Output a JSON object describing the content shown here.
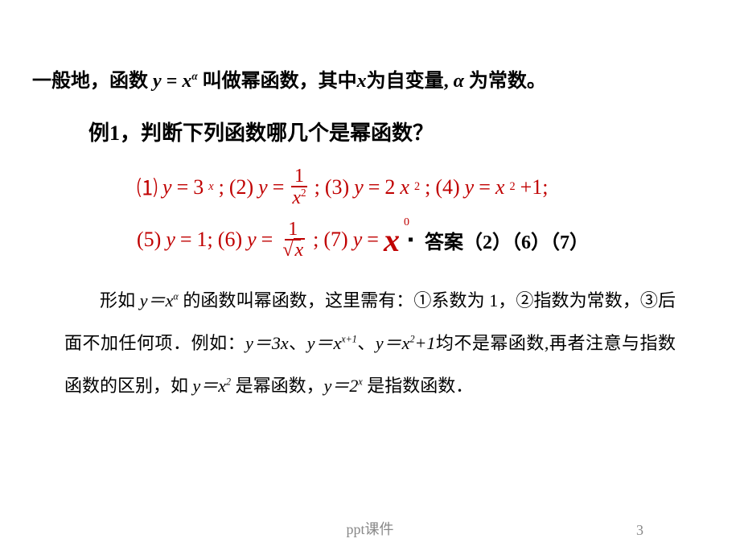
{
  "colors": {
    "text": "#000000",
    "accent": "#c00000",
    "footer": "#888888",
    "background": "#ffffff"
  },
  "typography": {
    "body_font": "SimSun, Times New Roman, serif",
    "math_font": "Times New Roman, serif",
    "title_size_pt": 24,
    "example_size_pt": 26,
    "equation_size_pt": 26,
    "explain_size_pt": 22,
    "footer_size_pt": 18
  },
  "line1": {
    "prefix": "一般地，函数 ",
    "formula_y": "y",
    "formula_eq": " = ",
    "formula_x": "x",
    "formula_exp": "α",
    "mid": " 叫做幂函数，其中",
    "xvar": "x",
    "mid2": "为自变量,",
    "alpha": "α",
    "suffix": " 为常数。"
  },
  "example_title": "例1，判断下列函数哪几个是幂函数？",
  "eq_row1": {
    "p1": "⑴",
    "e1_lhs": "y",
    "e1_eq": "=",
    "e1_base": "3",
    "e1_exp": "x",
    "sep1": ";",
    "p2": "(2)",
    "e2_lhs": "y",
    "e2_eq": "=",
    "e2_num": "1",
    "e2_den_base": "x",
    "e2_den_exp": "2",
    "sep2": ";",
    "p3": "(3)",
    "e3_lhs": "y",
    "e3_eq": "=",
    "e3_coef": "2",
    "e3_base": "x",
    "e3_exp": "2",
    "sep3": ";",
    "p4": "(4)",
    "e4_lhs": "y",
    "e4_eq": "=",
    "e4_base": "x",
    "e4_exp": "2",
    "e4_plus": "+1;",
    "sep4": ""
  },
  "eq_row2": {
    "p5": "(5)",
    "e5": "y",
    "e5_eq": "=",
    "e5_val": "1;",
    "p6": "(6)",
    "e6_lhs": "y",
    "e6_eq": "=",
    "e6_num": "1",
    "e6_den_rad": "x",
    "sep6": ";",
    "p7": "(7)",
    "e7_lhs": "y",
    "e7_eq": "=",
    "e7_base": "x",
    "e7_exp": "0",
    "dot": "▪"
  },
  "answer": {
    "label": "答案",
    "items": "（2）（6）（7）"
  },
  "explain": {
    "t1": "形如 ",
    "f1": "y＝x",
    "f1_exp": "α",
    "t2": " 的函数叫幂函数，这里需有：①系数为 1，②指数为常数，③后面不加任何项．例如：",
    "f2": "y＝3x",
    "t3": "、",
    "f3": "y＝x",
    "f3_exp": "x+1",
    "t4": "、",
    "f4": "y＝x",
    "f4_exp": "2",
    "f4_tail": "+1",
    "t5": "均不是幂函数,再者注意与指数函数的区别，如 ",
    "f5": "y＝x",
    "f5_exp": "2",
    "t6": " 是幂函数，",
    "f6": "y＝2",
    "f6_exp": "x",
    "t7": " 是指数函数．"
  },
  "footer": "ppt课件",
  "pagenum": "3"
}
